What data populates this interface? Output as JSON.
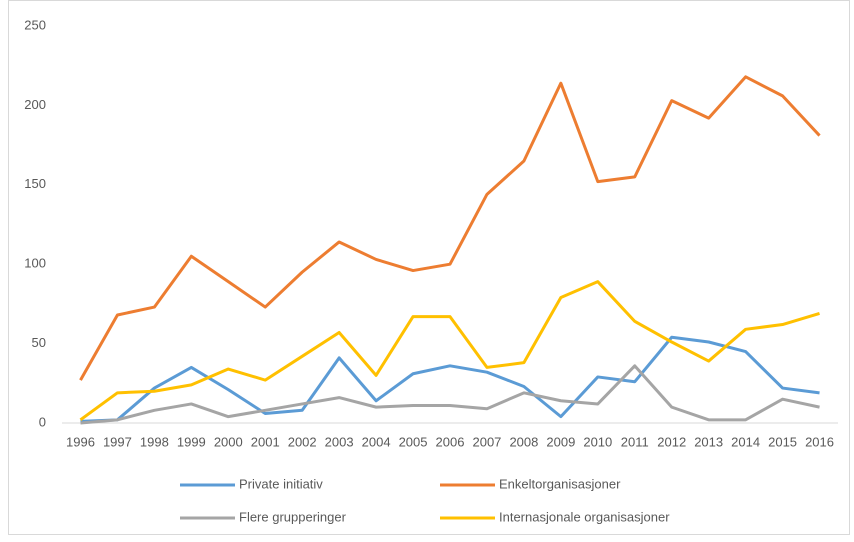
{
  "chart_data": {
    "type": "line",
    "categories": [
      "1996",
      "1997",
      "1998",
      "1999",
      "2000",
      "2001",
      "2002",
      "2003",
      "2004",
      "2005",
      "2006",
      "2007",
      "2008",
      "2009",
      "2010",
      "2011",
      "2012",
      "2013",
      "2014",
      "2015",
      "2016"
    ],
    "series": [
      {
        "name": "Private initiativ",
        "color": "#5b9bd5",
        "values": [
          1,
          2,
          22,
          35,
          21,
          6,
          8,
          41,
          14,
          31,
          36,
          32,
          23,
          4,
          29,
          26,
          54,
          51,
          45,
          22,
          19
        ]
      },
      {
        "name": "Enkeltorganisasjoner",
        "color": "#ed7d31",
        "values": [
          27,
          68,
          73,
          105,
          89,
          73,
          95,
          114,
          103,
          96,
          100,
          144,
          165,
          214,
          152,
          155,
          203,
          192,
          218,
          206,
          181
        ]
      },
      {
        "name": "Flere grupperinger",
        "color": "#a5a5a5",
        "values": [
          0,
          2,
          8,
          12,
          4,
          8,
          12,
          16,
          10,
          11,
          11,
          9,
          19,
          14,
          12,
          36,
          10,
          2,
          2,
          15,
          10
        ]
      },
      {
        "name": "Internasjonale organisasjoner",
        "color": "#ffc000",
        "values": [
          2,
          19,
          20,
          24,
          34,
          27,
          42,
          57,
          30,
          67,
          67,
          35,
          38,
          79,
          89,
          64,
          51,
          39,
          59,
          62,
          69
        ]
      }
    ],
    "ylim": [
      0,
      250
    ],
    "yticks": [
      0,
      50,
      100,
      150,
      200,
      250
    ],
    "grid": false,
    "legend": "bottom"
  }
}
